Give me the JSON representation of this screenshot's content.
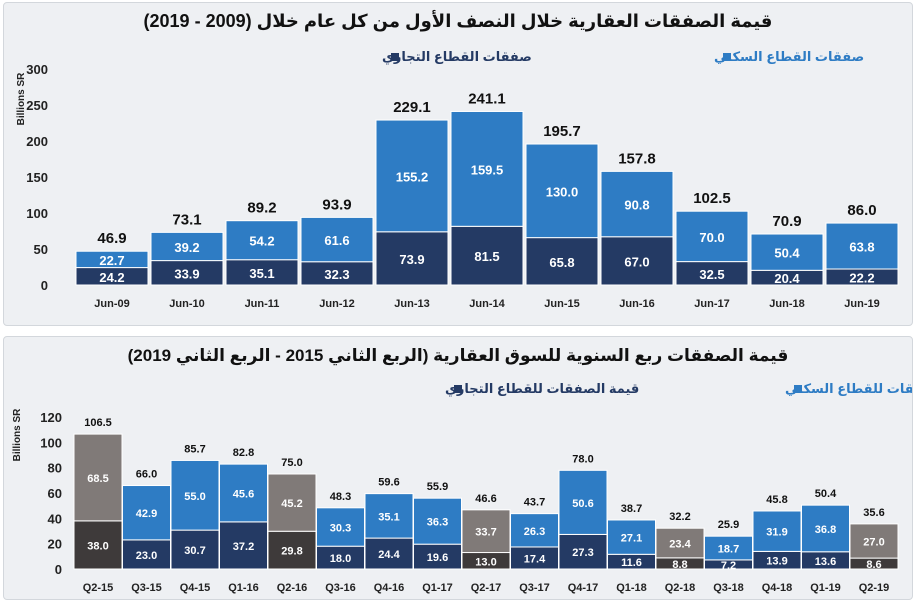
{
  "chart_data": [
    {
      "type": "bar",
      "stacked": true,
      "title": "قيمة الصفقات العقارية خلال النصف الأول من كل عام خلال (2009 - 2019)",
      "ylabel": "Billions SR",
      "ylim": [
        0,
        300
      ],
      "yticks": [
        0,
        50,
        100,
        150,
        200,
        250,
        300
      ],
      "legend_position": "top",
      "categories": [
        "Jun-09",
        "Jun-10",
        "Jun-11",
        "Jun-12",
        "Jun-13",
        "Jun-14",
        "Jun-15",
        "Jun-16",
        "Jun-17",
        "Jun-18",
        "Jun-19"
      ],
      "series": [
        {
          "name": "صفقات القطاع التجاري",
          "color": "#243a64",
          "values": [
            24.2,
            33.9,
            35.1,
            32.3,
            73.9,
            81.5,
            65.8,
            67.0,
            32.5,
            20.4,
            22.2
          ]
        },
        {
          "name": "صفقات القطاع السكني",
          "color": "#2e7cc4",
          "values": [
            22.7,
            39.2,
            54.2,
            61.6,
            155.2,
            159.5,
            130.0,
            90.8,
            70.0,
            50.4,
            63.8
          ]
        }
      ],
      "totals": [
        46.9,
        73.1,
        89.2,
        93.9,
        229.1,
        241.1,
        195.7,
        157.8,
        102.5,
        70.9,
        86.0
      ],
      "value_labels": {
        "bottom": [
          "24.2",
          "33.9",
          "35.1",
          "32.3",
          "73.9",
          "81.5",
          "65.8",
          "67.0",
          "32.5",
          "20.4",
          "22.2"
        ],
        "top": [
          "22.7",
          "39.2",
          "54.2",
          "61.6",
          "155.2",
          "159.5",
          "130.0",
          "90.8",
          "70.0",
          "50.4",
          "63.8"
        ],
        "totals": [
          "46.9",
          "73.1",
          "89.2",
          "93.9",
          "229.1",
          "241.1",
          "195.7",
          "157.8",
          "102.5",
          "70.9",
          "86.0"
        ]
      },
      "ytick_labels": [
        "0",
        "50",
        "100",
        "150",
        "200",
        "250",
        "300"
      ]
    },
    {
      "type": "bar",
      "stacked": true,
      "title": "قيمة الصفقات ربع السنوية للسوق العقارية (الربع الثاني 2015 - الربع الثاني 2019)",
      "ylabel": "Billions SR",
      "ylim": [
        0,
        120
      ],
      "yticks": [
        0,
        20,
        40,
        60,
        80,
        100,
        120
      ],
      "legend_position": "top",
      "categories": [
        "Q2-15",
        "Q3-15",
        "Q4-15",
        "Q1-16",
        "Q2-16",
        "Q3-16",
        "Q4-16",
        "Q1-17",
        "Q2-17",
        "Q3-17",
        "Q4-17",
        "Q1-18",
        "Q2-18",
        "Q3-18",
        "Q4-18",
        "Q1-19",
        "Q2-19"
      ],
      "q2_highlight": [
        true,
        false,
        false,
        false,
        true,
        false,
        false,
        false,
        true,
        false,
        false,
        false,
        true,
        false,
        false,
        false,
        true
      ],
      "series": [
        {
          "name": "قيمة الصفقات للقطاع التجاري",
          "color": "#243a64",
          "highlight_color": "#3e3a3a",
          "values": [
            38.0,
            23.0,
            30.7,
            37.2,
            29.8,
            18.0,
            24.4,
            19.6,
            13.0,
            17.4,
            27.3,
            11.6,
            8.8,
            7.2,
            13.9,
            13.6,
            8.6
          ]
        },
        {
          "name": "قيمة الصفقات للقطاع السكني",
          "color": "#2e7cc4",
          "highlight_color": "#807a78",
          "values": [
            68.5,
            42.9,
            55.0,
            45.6,
            45.2,
            30.3,
            35.1,
            36.3,
            33.7,
            26.3,
            50.6,
            27.1,
            23.4,
            18.7,
            31.9,
            36.8,
            27.0
          ]
        }
      ],
      "totals": [
        106.5,
        66.0,
        85.7,
        82.8,
        75.0,
        48.3,
        59.6,
        55.9,
        46.6,
        43.7,
        78.0,
        38.7,
        32.2,
        25.9,
        45.8,
        50.4,
        35.6
      ],
      "value_labels": {
        "bottom": [
          "38.0",
          "23.0",
          "30.7",
          "37.2",
          "29.8",
          "18.0",
          "24.4",
          "19.6",
          "13.0",
          "17.4",
          "27.3",
          "11.6",
          "8.8",
          "7.2",
          "13.9",
          "13.6",
          "8.6"
        ],
        "top": [
          "68.5",
          "42.9",
          "55.0",
          "45.6",
          "45.2",
          "30.3",
          "35.1",
          "36.3",
          "33.7",
          "26.3",
          "50.6",
          "27.1",
          "23.4",
          "18.7",
          "31.9",
          "36.8",
          "27.0"
        ],
        "totals": [
          "106.5",
          "66.0",
          "85.7",
          "82.8",
          "75.0",
          "48.3",
          "59.6",
          "55.9",
          "46.6",
          "43.7",
          "78.0",
          "38.7",
          "32.2",
          "25.9",
          "45.8",
          "50.4",
          "35.6"
        ]
      },
      "ytick_labels": [
        "0",
        "20",
        "40",
        "60",
        "80",
        "100",
        "120"
      ]
    }
  ]
}
